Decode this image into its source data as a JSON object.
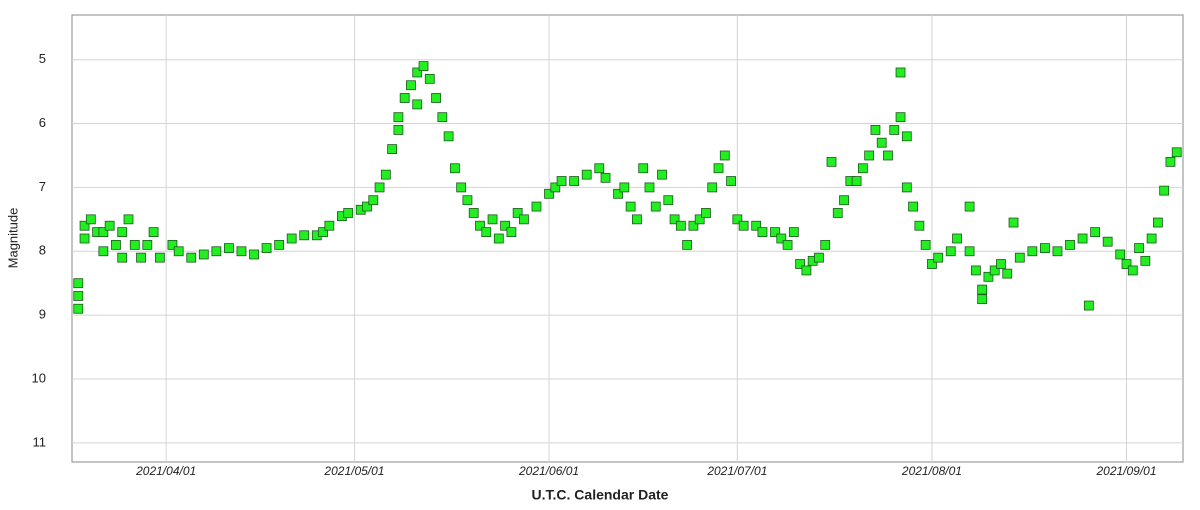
{
  "chart_data": {
    "type": "scatter",
    "xlabel": "U.T.C. Calendar Date",
    "ylabel": "Magnitude",
    "xlim": [
      "2021/03/17",
      "2021/09/10"
    ],
    "ylim": [
      4.3,
      11.3
    ],
    "y_inverted": true,
    "grid": true,
    "xticks": [
      "2021/04/01",
      "2021/05/01",
      "2021/06/01",
      "2021/07/01",
      "2021/08/01",
      "2021/09/01"
    ],
    "yticks": [
      5,
      6,
      7,
      8,
      9,
      10,
      11
    ],
    "color": "#22ee22",
    "x": [
      "2021/03/18",
      "2021/03/18",
      "2021/03/18",
      "2021/03/19",
      "2021/03/19",
      "2021/03/20",
      "2021/03/21",
      "2021/03/22",
      "2021/03/22",
      "2021/03/23",
      "2021/03/24",
      "2021/03/25",
      "2021/03/25",
      "2021/03/26",
      "2021/03/27",
      "2021/03/28",
      "2021/03/29",
      "2021/03/30",
      "2021/03/31",
      "2021/04/02",
      "2021/04/03",
      "2021/04/05",
      "2021/04/07",
      "2021/04/09",
      "2021/04/11",
      "2021/04/13",
      "2021/04/15",
      "2021/04/17",
      "2021/04/19",
      "2021/04/21",
      "2021/04/23",
      "2021/04/25",
      "2021/04/26",
      "2021/04/27",
      "2021/04/29",
      "2021/04/30",
      "2021/05/02",
      "2021/05/03",
      "2021/05/04",
      "2021/05/05",
      "2021/05/06",
      "2021/05/07",
      "2021/05/08",
      "2021/05/08",
      "2021/05/09",
      "2021/05/10",
      "2021/05/11",
      "2021/05/11",
      "2021/05/12",
      "2021/05/13",
      "2021/05/14",
      "2021/05/15",
      "2021/05/16",
      "2021/05/17",
      "2021/05/18",
      "2021/05/19",
      "2021/05/20",
      "2021/05/21",
      "2021/05/22",
      "2021/05/23",
      "2021/05/24",
      "2021/05/25",
      "2021/05/26",
      "2021/05/27",
      "2021/05/28",
      "2021/05/30",
      "2021/06/01",
      "2021/06/02",
      "2021/06/03",
      "2021/06/05",
      "2021/06/07",
      "2021/06/09",
      "2021/06/10",
      "2021/06/12",
      "2021/06/13",
      "2021/06/14",
      "2021/06/15",
      "2021/06/16",
      "2021/06/17",
      "2021/06/18",
      "2021/06/19",
      "2021/06/20",
      "2021/06/21",
      "2021/06/22",
      "2021/06/23",
      "2021/06/24",
      "2021/06/25",
      "2021/06/26",
      "2021/06/27",
      "2021/06/28",
      "2021/06/29",
      "2021/06/30",
      "2021/07/01",
      "2021/07/02",
      "2021/07/04",
      "2021/07/05",
      "2021/07/07",
      "2021/07/08",
      "2021/07/09",
      "2021/07/10",
      "2021/07/11",
      "2021/07/12",
      "2021/07/13",
      "2021/07/14",
      "2021/07/15",
      "2021/07/16",
      "2021/07/17",
      "2021/07/18",
      "2021/07/19",
      "2021/07/20",
      "2021/07/21",
      "2021/07/22",
      "2021/07/23",
      "2021/07/24",
      "2021/07/25",
      "2021/07/26",
      "2021/07/27",
      "2021/07/27",
      "2021/07/28",
      "2021/07/28",
      "2021/07/29",
      "2021/07/30",
      "2021/07/31",
      "2021/08/01",
      "2021/08/02",
      "2021/08/04",
      "2021/08/05",
      "2021/08/07",
      "2021/08/07",
      "2021/08/08",
      "2021/08/09",
      "2021/08/09",
      "2021/08/10",
      "2021/08/11",
      "2021/08/12",
      "2021/08/13",
      "2021/08/14",
      "2021/08/15",
      "2021/08/17",
      "2021/08/19",
      "2021/08/21",
      "2021/08/23",
      "2021/08/25",
      "2021/08/26",
      "2021/08/27",
      "2021/08/29",
      "2021/08/31",
      "2021/09/01",
      "2021/09/02",
      "2021/09/03",
      "2021/09/04",
      "2021/09/05",
      "2021/09/06",
      "2021/09/07",
      "2021/09/08",
      "2021/09/09"
    ],
    "values": [
      8.9,
      8.7,
      8.5,
      7.8,
      7.6,
      7.5,
      7.7,
      8.0,
      7.7,
      7.6,
      7.9,
      7.7,
      8.1,
      7.5,
      7.9,
      8.1,
      7.9,
      7.7,
      8.1,
      7.9,
      8.0,
      8.1,
      8.05,
      8.0,
      7.95,
      8.0,
      8.05,
      7.95,
      7.9,
      7.8,
      7.75,
      7.75,
      7.7,
      7.6,
      7.45,
      7.4,
      7.35,
      7.3,
      7.2,
      7.0,
      6.8,
      6.4,
      6.1,
      5.9,
      5.6,
      5.4,
      5.2,
      5.7,
      5.1,
      5.3,
      5.6,
      5.9,
      6.2,
      6.7,
      7.0,
      7.2,
      7.4,
      7.6,
      7.7,
      7.5,
      7.8,
      7.6,
      7.7,
      7.4,
      7.5,
      7.3,
      7.1,
      7.0,
      6.9,
      6.9,
      6.8,
      6.7,
      6.85,
      7.1,
      7.0,
      7.3,
      7.5,
      6.7,
      7.0,
      7.3,
      6.8,
      7.2,
      7.5,
      7.6,
      7.9,
      7.6,
      7.5,
      7.4,
      7.0,
      6.7,
      6.5,
      6.9,
      7.5,
      7.6,
      7.6,
      7.7,
      7.7,
      7.8,
      7.9,
      7.7,
      8.2,
      8.3,
      8.15,
      8.1,
      7.9,
      6.6,
      7.4,
      7.2,
      6.9,
      6.9,
      6.7,
      6.5,
      6.1,
      6.3,
      6.5,
      6.1,
      5.2,
      5.9,
      6.2,
      7.0,
      7.3,
      7.6,
      7.9,
      8.2,
      8.1,
      8.0,
      7.8,
      7.3,
      8.0,
      8.3,
      8.6,
      8.75,
      8.4,
      8.3,
      8.2,
      8.35,
      7.55,
      8.1,
      8.0,
      7.95,
      8.0,
      7.9,
      7.8,
      8.85,
      7.7,
      7.85,
      8.05,
      8.2,
      8.3,
      7.95,
      8.15,
      7.8,
      7.55,
      7.05,
      6.6,
      6.45
    ]
  }
}
